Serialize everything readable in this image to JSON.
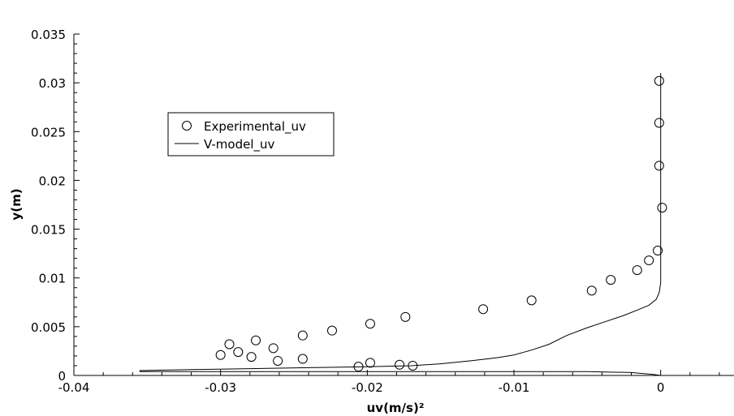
{
  "chart_data": {
    "type": "scatter",
    "title": "",
    "xlabel": "uv(m/s)²",
    "ylabel": "y(m)",
    "xlim": [
      -0.04,
      0.005
    ],
    "ylim": [
      0,
      0.035
    ],
    "x_major_ticks": [
      -0.04,
      -0.03,
      -0.02,
      -0.01,
      0
    ],
    "x_tick_labels": [
      "-0.04",
      "-0.03",
      "-0.02",
      "-0.01",
      "0"
    ],
    "y_major_ticks": [
      0,
      0.005,
      0.01,
      0.015,
      0.02,
      0.025,
      0.03,
      0.035
    ],
    "y_tick_labels": [
      "0",
      "0.005",
      "0.01",
      "0.015",
      "0.02",
      "0.025",
      "0.03",
      "0.035"
    ],
    "grid": false,
    "legend_position": "upper-left",
    "series": [
      {
        "name": "Experimental_uv",
        "kind": "scatter",
        "marker": "open-circle",
        "color": "#000000",
        "points": [
          [
            -0.03,
            0.0021
          ],
          [
            -0.0294,
            0.0032
          ],
          [
            -0.0288,
            0.0024
          ],
          [
            -0.0279,
            0.0019
          ],
          [
            -0.0276,
            0.0036
          ],
          [
            -0.0264,
            0.0028
          ],
          [
            -0.0261,
            0.0015
          ],
          [
            -0.0244,
            0.0041
          ],
          [
            -0.0244,
            0.0017
          ],
          [
            -0.0224,
            0.0046
          ],
          [
            -0.0206,
            0.0009
          ],
          [
            -0.0198,
            0.0053
          ],
          [
            -0.0198,
            0.0013
          ],
          [
            -0.0178,
            0.0011
          ],
          [
            -0.0174,
            0.006
          ],
          [
            -0.0169,
            0.001
          ],
          [
            -0.0121,
            0.0068
          ],
          [
            -0.0088,
            0.0077
          ],
          [
            -0.0047,
            0.0087
          ],
          [
            -0.0034,
            0.0098
          ],
          [
            -0.0016,
            0.0108
          ],
          [
            -0.0008,
            0.0118
          ],
          [
            -0.0002,
            0.0128
          ],
          [
            0.0001,
            0.0172
          ],
          [
            -0.0001,
            0.0215
          ],
          [
            -0.0001,
            0.0259
          ],
          [
            -0.0001,
            0.0302
          ]
        ]
      },
      {
        "name": "V-model_uv",
        "kind": "line",
        "color": "#000000",
        "points": [
          [
            0.0,
            0.031
          ],
          [
            0.0,
            0.02
          ],
          [
            0.0,
            0.013
          ],
          [
            0.0,
            0.0095
          ],
          [
            -0.0001,
            0.0085
          ],
          [
            -0.0003,
            0.0078
          ],
          [
            -0.0008,
            0.0072
          ],
          [
            -0.0016,
            0.0067
          ],
          [
            -0.0026,
            0.0061
          ],
          [
            -0.0038,
            0.0055
          ],
          [
            -0.005,
            0.0049
          ],
          [
            -0.0064,
            0.0041
          ],
          [
            -0.0076,
            0.0032
          ],
          [
            -0.0088,
            0.0026
          ],
          [
            -0.01,
            0.0021
          ],
          [
            -0.0112,
            0.0018
          ],
          [
            -0.013,
            0.0015
          ],
          [
            -0.015,
            0.0012
          ],
          [
            -0.017,
            0.001
          ],
          [
            -0.02,
            0.0009
          ],
          [
            -0.024,
            0.0008
          ],
          [
            -0.028,
            0.0007
          ],
          [
            -0.032,
            0.0006
          ],
          [
            -0.0355,
            0.0005
          ],
          [
            -0.0355,
            0.0004
          ],
          [
            -0.03,
            0.0004
          ],
          [
            -0.025,
            0.0004
          ],
          [
            -0.02,
            0.0004
          ],
          [
            -0.015,
            0.0004
          ],
          [
            -0.01,
            0.0004
          ],
          [
            -0.005,
            0.0004
          ],
          [
            -0.002,
            0.0003
          ],
          [
            -0.0005,
            0.0001
          ],
          [
            0.0,
            0.0
          ]
        ]
      }
    ]
  }
}
